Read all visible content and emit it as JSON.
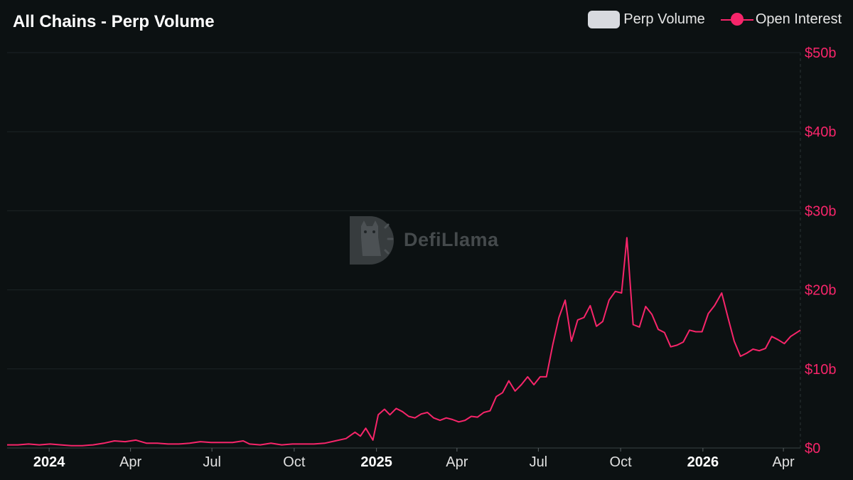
{
  "header": {
    "title": "All Chains - Perp Volume"
  },
  "legend": {
    "items": [
      {
        "label": "Perp Volume",
        "color": "#d8dadf"
      },
      {
        "label": "Open Interest",
        "color": "#f7256a"
      }
    ]
  },
  "watermark": {
    "text": "DefiLlama"
  },
  "colors": {
    "background": "#0c1112",
    "accent": "#f7256a",
    "grid": "#1c2426"
  },
  "chart_data": {
    "type": "line",
    "title": "All Chains - Perp Volume",
    "xlabel": "",
    "ylabel": "",
    "x_range": [
      "2023-11-15",
      "2026-04-20"
    ],
    "ylim": [
      0,
      50
    ],
    "y_unit": "billions USD",
    "grid": true,
    "legend_position": "top-right",
    "y_ticks": [
      {
        "value": 0,
        "label": "$0"
      },
      {
        "value": 10,
        "label": "$10b"
      },
      {
        "value": 20,
        "label": "$20b"
      },
      {
        "value": 30,
        "label": "$30b"
      },
      {
        "value": 40,
        "label": "$40b"
      },
      {
        "value": 50,
        "label": "$50b"
      }
    ],
    "x_ticks": [
      {
        "date": "2024-01-01",
        "label": "2024",
        "major": true
      },
      {
        "date": "2024-04-01",
        "label": "Apr",
        "major": false
      },
      {
        "date": "2024-07-01",
        "label": "Jul",
        "major": false
      },
      {
        "date": "2024-10-01",
        "label": "Oct",
        "major": false
      },
      {
        "date": "2025-01-01",
        "label": "2025",
        "major": true
      },
      {
        "date": "2025-04-01",
        "label": "Apr",
        "major": false
      },
      {
        "date": "2025-07-01",
        "label": "Jul",
        "major": false
      },
      {
        "date": "2025-10-01",
        "label": "Oct",
        "major": false
      },
      {
        "date": "2026-01-01",
        "label": "2026",
        "major": true
      },
      {
        "date": "2026-04-01",
        "label": "Apr",
        "major": false
      }
    ],
    "series": [
      {
        "name": "Perp Volume",
        "values": []
      },
      {
        "name": "Open Interest",
        "color": "#f7256a",
        "points": [
          [
            "2023-11-15",
            0.4
          ],
          [
            "2023-11-27",
            0.4
          ],
          [
            "2023-12-09",
            0.5
          ],
          [
            "2023-12-21",
            0.4
          ],
          [
            "2024-01-02",
            0.5
          ],
          [
            "2024-01-14",
            0.4
          ],
          [
            "2024-01-26",
            0.3
          ],
          [
            "2024-02-07",
            0.3
          ],
          [
            "2024-02-19",
            0.4
          ],
          [
            "2024-03-02",
            0.6
          ],
          [
            "2024-03-14",
            0.9
          ],
          [
            "2024-03-26",
            0.8
          ],
          [
            "2024-04-07",
            1.0
          ],
          [
            "2024-04-19",
            0.6
          ],
          [
            "2024-05-01",
            0.6
          ],
          [
            "2024-05-13",
            0.5
          ],
          [
            "2024-05-25",
            0.5
          ],
          [
            "2024-06-06",
            0.6
          ],
          [
            "2024-06-18",
            0.8
          ],
          [
            "2024-06-30",
            0.7
          ],
          [
            "2024-07-12",
            0.7
          ],
          [
            "2024-07-24",
            0.7
          ],
          [
            "2024-08-05",
            0.9
          ],
          [
            "2024-08-12",
            0.5
          ],
          [
            "2024-08-24",
            0.4
          ],
          [
            "2024-09-05",
            0.6
          ],
          [
            "2024-09-17",
            0.4
          ],
          [
            "2024-09-29",
            0.5
          ],
          [
            "2024-10-11",
            0.5
          ],
          [
            "2024-10-23",
            0.5
          ],
          [
            "2024-11-04",
            0.6
          ],
          [
            "2024-11-16",
            0.9
          ],
          [
            "2024-11-28",
            1.2
          ],
          [
            "2024-12-08",
            2.0
          ],
          [
            "2024-12-14",
            1.5
          ],
          [
            "2024-12-20",
            2.5
          ],
          [
            "2024-12-28",
            1.0
          ],
          [
            "2025-01-03",
            4.2
          ],
          [
            "2025-01-10",
            4.9
          ],
          [
            "2025-01-16",
            4.2
          ],
          [
            "2025-01-23",
            5.0
          ],
          [
            "2025-01-30",
            4.6
          ],
          [
            "2025-02-06",
            4.0
          ],
          [
            "2025-02-13",
            3.8
          ],
          [
            "2025-02-20",
            4.3
          ],
          [
            "2025-02-27",
            4.5
          ],
          [
            "2025-03-06",
            3.8
          ],
          [
            "2025-03-13",
            3.5
          ],
          [
            "2025-03-20",
            3.8
          ],
          [
            "2025-03-27",
            3.6
          ],
          [
            "2025-04-03",
            3.3
          ],
          [
            "2025-04-10",
            3.5
          ],
          [
            "2025-04-17",
            4.0
          ],
          [
            "2025-04-24",
            3.9
          ],
          [
            "2025-05-01",
            4.5
          ],
          [
            "2025-05-08",
            4.7
          ],
          [
            "2025-05-15",
            6.5
          ],
          [
            "2025-05-22",
            7.0
          ],
          [
            "2025-05-29",
            8.5
          ],
          [
            "2025-06-05",
            7.2
          ],
          [
            "2025-06-12",
            8.0
          ],
          [
            "2025-06-19",
            9.0
          ],
          [
            "2025-06-26",
            8.0
          ],
          [
            "2025-07-03",
            9.0
          ],
          [
            "2025-07-10",
            9.0
          ],
          [
            "2025-07-17",
            13.0
          ],
          [
            "2025-07-24",
            16.5
          ],
          [
            "2025-07-31",
            18.7
          ],
          [
            "2025-08-07",
            13.5
          ],
          [
            "2025-08-14",
            16.2
          ],
          [
            "2025-08-21",
            16.5
          ],
          [
            "2025-08-28",
            18.0
          ],
          [
            "2025-09-04",
            15.4
          ],
          [
            "2025-09-11",
            16.0
          ],
          [
            "2025-09-18",
            18.7
          ],
          [
            "2025-09-25",
            19.8
          ],
          [
            "2025-10-02",
            19.6
          ],
          [
            "2025-10-08",
            26.6
          ],
          [
            "2025-10-15",
            15.6
          ],
          [
            "2025-10-22",
            15.3
          ],
          [
            "2025-10-29",
            17.9
          ],
          [
            "2025-11-05",
            16.9
          ],
          [
            "2025-11-12",
            15.0
          ],
          [
            "2025-11-19",
            14.6
          ],
          [
            "2025-11-26",
            12.8
          ],
          [
            "2025-12-03",
            13.0
          ],
          [
            "2025-12-10",
            13.4
          ],
          [
            "2025-12-17",
            14.9
          ],
          [
            "2025-12-24",
            14.7
          ],
          [
            "2025-12-31",
            14.7
          ],
          [
            "2026-01-07",
            17.0
          ],
          [
            "2026-01-14",
            18.0
          ],
          [
            "2026-01-22",
            19.6
          ],
          [
            "2026-01-29",
            16.5
          ],
          [
            "2026-02-05",
            13.5
          ],
          [
            "2026-02-12",
            11.6
          ],
          [
            "2026-02-19",
            12.0
          ],
          [
            "2026-02-26",
            12.5
          ],
          [
            "2026-03-05",
            12.3
          ],
          [
            "2026-03-12",
            12.6
          ],
          [
            "2026-03-19",
            14.1
          ],
          [
            "2026-03-26",
            13.7
          ],
          [
            "2026-04-02",
            13.2
          ],
          [
            "2026-04-09",
            14.1
          ],
          [
            "2026-04-20",
            14.9
          ]
        ]
      }
    ]
  }
}
